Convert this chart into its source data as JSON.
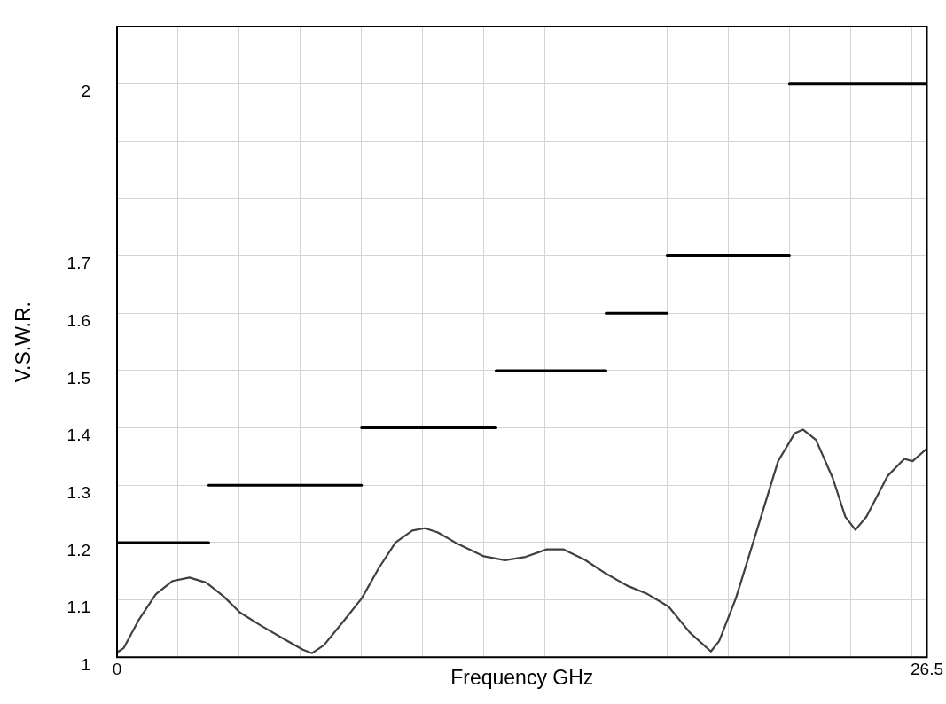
{
  "chart_data": {
    "type": "line",
    "xlabel": "Frequency GHz",
    "ylabel": "V.S.W.R.",
    "xlim": [
      0,
      26.5
    ],
    "xticks": [
      0,
      {
        "value": 2,
        "label": null
      },
      {
        "value": 4,
        "label": null
      },
      {
        "value": 6,
        "label": null
      },
      {
        "value": 8,
        "label": null
      },
      {
        "value": 10,
        "label": null
      },
      {
        "value": 12,
        "label": null
      },
      {
        "value": 14,
        "label": null
      },
      {
        "value": 16,
        "label": null
      },
      {
        "value": 18,
        "label": null
      },
      {
        "value": 20,
        "label": null
      },
      {
        "value": 22,
        "label": null
      },
      {
        "value": 24,
        "label": null
      },
      {
        "value": 26,
        "label": null
      },
      26.5
    ],
    "ylim": [
      1,
      2.1
    ],
    "yticks": [
      1,
      1.1,
      1.2,
      1.3,
      1.4,
      1.5,
      1.6,
      1.7,
      {
        "value": 1.8,
        "label": null
      },
      {
        "value": 1.9,
        "label": null
      },
      2,
      {
        "value": 2.1,
        "label": null
      }
    ],
    "grid": true,
    "legend": false,
    "marker": "none",
    "line_style": "solid",
    "series": [
      {
        "color": "#404040",
        "x": [
          0.05,
          0.22,
          0.72,
          1.27,
          1.82,
          2.37,
          2.92,
          3.47,
          4.02,
          4.71,
          5.39,
          6.08,
          6.38,
          6.77,
          7.46,
          8.01,
          8.56,
          9.11,
          9.66,
          10.07,
          10.48,
          11.17,
          12.0,
          12.69,
          13.37,
          14.06,
          14.61,
          15.3,
          15.99,
          16.68,
          17.36,
          18.05,
          18.74,
          19.43,
          19.7,
          20.25,
          20.94,
          21.63,
          22.18,
          22.45,
          22.87,
          23.42,
          23.83,
          24.16,
          24.52,
          25.21,
          25.76,
          26.03,
          26.5
        ],
        "values": [
          1.01,
          1.016,
          1.066,
          1.11,
          1.133,
          1.139,
          1.13,
          1.107,
          1.078,
          1.055,
          1.034,
          1.013,
          1.007,
          1.021,
          1.066,
          1.103,
          1.155,
          1.2,
          1.221,
          1.225,
          1.218,
          1.197,
          1.176,
          1.169,
          1.175,
          1.188,
          1.188,
          1.17,
          1.146,
          1.125,
          1.11,
          1.088,
          1.043,
          1.01,
          1.028,
          1.103,
          1.222,
          1.342,
          1.391,
          1.397,
          1.379,
          1.312,
          1.245,
          1.222,
          1.245,
          1.316,
          1.346,
          1.342,
          1.364
        ]
      },
      {
        "color": "#000000",
        "x": [
          0,
          3
        ],
        "values": [
          1.2,
          1.2
        ]
      },
      {
        "color": "#000000",
        "x": [
          3,
          8
        ],
        "values": [
          1.3,
          1.3
        ]
      },
      {
        "color": "#000000",
        "x": [
          8,
          12.4
        ],
        "values": [
          1.4,
          1.4
        ]
      },
      {
        "color": "#000000",
        "x": [
          12.4,
          16
        ],
        "values": [
          1.5,
          1.5
        ]
      },
      {
        "color": "#000000",
        "x": [
          16,
          18
        ],
        "values": [
          1.6,
          1.6
        ]
      },
      {
        "color": "#000000",
        "x": [
          18,
          22
        ],
        "values": [
          1.7,
          1.7
        ]
      },
      {
        "color": "#000000",
        "x": [
          22,
          26.5
        ],
        "values": [
          2,
          2
        ]
      }
    ]
  }
}
